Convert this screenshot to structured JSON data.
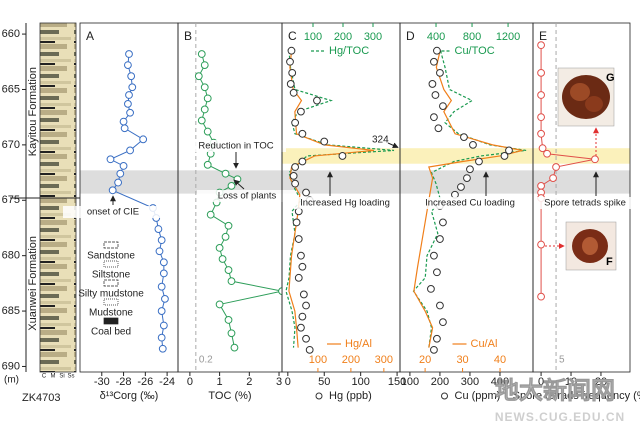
{
  "chart_data": [
    {
      "type": "column",
      "title": "ZK4703",
      "ylabel": "(m)",
      "ylim": [
        659,
        690.5
      ],
      "yticks": [
        660,
        665,
        670,
        675,
        680,
        685,
        690
      ],
      "formations": [
        "Kayitou Formation",
        "Xuanwei Formation"
      ],
      "formation_boundary": 674.8,
      "lithology_columns": [
        "C",
        "M",
        "Si",
        "Ss"
      ],
      "legend": [
        "Sandstone",
        "Siltstone",
        "Silty mudstone",
        "Mudstone",
        "Coal bed"
      ],
      "bands": [
        {
          "from": 670.3,
          "to": 671.7,
          "color": "#fbf0b4"
        },
        {
          "from": 672.3,
          "to": 674.4,
          "color": "#d9d9d9"
        }
      ]
    },
    {
      "type": "profile",
      "label": "A",
      "axes": [
        {
          "label": "δ¹³Corg (‰)",
          "position": "bottom",
          "color": "#222222",
          "xlim": [
            -32,
            -23
          ],
          "xticks": [
            -30,
            -28,
            -26,
            -24
          ]
        }
      ],
      "series": [
        {
          "axis": 0,
          "style": "line-circles",
          "color": "#3a6fc4",
          "depth": [
            661.8,
            662.8,
            663.8,
            664.8,
            665.5,
            666.3,
            667.1,
            667.9,
            668.5,
            669.5,
            670.5,
            671.3,
            671.9,
            672.6,
            673.4,
            674.1,
            675.7,
            676.6,
            677.6,
            678.6,
            679.6,
            680.6,
            681.6,
            682.8,
            683.9,
            685,
            686.3,
            687.4,
            688.4
          ],
          "values": [
            -27.5,
            -27.6,
            -27.3,
            -27.2,
            -27.5,
            -27.6,
            -27.4,
            -28,
            -27.9,
            -26.2,
            -27.4,
            -29.2,
            -28,
            -28.3,
            -28.5,
            -29,
            -25.3,
            -25,
            -24.8,
            -24.5,
            -24.7,
            -24.3,
            -24.3,
            -24.5,
            -24.2,
            -24.5,
            -24.3,
            -24.5,
            -24.4
          ]
        }
      ],
      "annotations": [
        "onset of CIE"
      ]
    },
    {
      "type": "profile",
      "label": "B",
      "ref": 0.2,
      "axes": [
        {
          "label": "TOC (%)",
          "position": "bottom",
          "color": "#222222",
          "xlim": [
            -0.4,
            3.1
          ],
          "xticks": [
            0,
            1,
            2,
            3
          ]
        }
      ],
      "series": [
        {
          "axis": 0,
          "style": "line-circles",
          "color": "#2e9e5a",
          "depth": [
            661.8,
            662.8,
            663.8,
            664.8,
            665.8,
            666.8,
            667.8,
            668.8,
            669.8,
            670.8,
            671.8,
            672.6,
            673.1,
            673.7,
            674.3,
            675.2,
            676.3,
            677.3,
            678.3,
            679.3,
            680.3,
            681.3,
            682.3,
            683.2,
            684.4,
            685.8,
            687,
            688.3
          ],
          "values": [
            0.4,
            0.5,
            0.3,
            0.5,
            0.6,
            0.5,
            0.4,
            0.6,
            0.8,
            0.7,
            0.6,
            1.2,
            1.6,
            1.4,
            1.0,
            0.9,
            0.7,
            1.3,
            1.2,
            1.0,
            1.1,
            1.3,
            1.4,
            3.1,
            1.0,
            1.3,
            1.4,
            1.5
          ]
        }
      ],
      "annotations": [
        "Reduction in TOC",
        "Loss of plants"
      ]
    },
    {
      "type": "profile",
      "label": "C",
      "axes": [
        {
          "label": "Hg (ppb)",
          "position": "bottom",
          "color": "#222222",
          "xlim": [
            -8,
            154
          ],
          "xticks": [
            0,
            50,
            100,
            150
          ]
        },
        {
          "label": "Hg/TOC",
          "position": "top",
          "color": "#1a9a50",
          "xlim": [
            -3.3,
            390
          ],
          "xticks": [
            100,
            200,
            300
          ]
        },
        {
          "label": "Hg/Al",
          "position": "inner-bottom",
          "color": "#f07f1a",
          "xlim": [
            -9,
            349
          ],
          "xticks": [
            100,
            200,
            300
          ]
        }
      ],
      "series": [
        {
          "axis": 1,
          "style": "dashed",
          "color": "#1a9a50",
          "depth": [
            661.5,
            663,
            665,
            666,
            667,
            668,
            669,
            670,
            670.5,
            671,
            671.5,
            672.5,
            673.5,
            675,
            676,
            678,
            680,
            682,
            683.2,
            685,
            686.5,
            688.3
          ],
          "values": [
            20,
            25,
            40,
            160,
            50,
            30,
            40,
            150,
            370,
            80,
            60,
            20,
            30,
            60,
            30,
            40,
            25,
            20,
            10,
            30,
            40,
            35
          ]
        },
        {
          "axis": 2,
          "style": "line",
          "color": "#f07f1a",
          "depth": [
            661.5,
            663,
            665,
            666,
            667,
            669,
            670,
            670.5,
            671,
            672,
            673,
            674.5,
            676,
            678,
            680,
            682,
            683.2,
            685,
            686.5,
            688.3
          ],
          "values": [
            20,
            15,
            25,
            50,
            30,
            35,
            120,
            270,
            90,
            20,
            15,
            45,
            40,
            30,
            20,
            15,
            12,
            30,
            35,
            40
          ]
        },
        {
          "axis": 0,
          "style": "circles",
          "color": "#333333",
          "depth": [
            661.5,
            662.5,
            663.5,
            664.5,
            665.3,
            666,
            667,
            668,
            669,
            669.7,
            670.5,
            671,
            671.5,
            672,
            672.8,
            673.5,
            674.3,
            675,
            676,
            677,
            678.5,
            680,
            681,
            682,
            683.5,
            684.5,
            685.5,
            686.5,
            687.5,
            688.5
          ],
          "values": [
            5,
            3,
            6,
            4,
            8,
            40,
            18,
            10,
            20,
            50,
            324,
            75,
            20,
            10,
            8,
            10,
            25,
            30,
            15,
            12,
            15,
            18,
            20,
            15,
            22,
            25,
            20,
            18,
            25,
            30
          ]
        }
      ],
      "annotations": [
        "Increased Hg loading"
      ]
    },
    {
      "type": "profile",
      "label": "D",
      "axes": [
        {
          "label": "Cu (ppm)",
          "position": "bottom",
          "color": "#222222",
          "xlim": [
            67,
            510
          ],
          "xticks": [
            100,
            200,
            300,
            400
          ]
        },
        {
          "label": "Cu/TOC",
          "position": "top",
          "color": "#1a9a50",
          "xlim": [
            0,
            1477
          ],
          "xticks": [
            400,
            800,
            1200
          ]
        },
        {
          "label": "Cu/Al",
          "position": "inner-bottom",
          "color": "#f07f1a",
          "xlim": [
            13.3,
            48.8
          ],
          "xticks": [
            20,
            30,
            40
          ]
        }
      ],
      "series": [
        {
          "axis": 1,
          "style": "dashed",
          "color": "#1a9a50",
          "depth": [
            661.5,
            663,
            665,
            666,
            667,
            668,
            669,
            670,
            670.5,
            671,
            671.5,
            672.5,
            673.5,
            675,
            676,
            678,
            680,
            682,
            683.2,
            685,
            686.5,
            688.3
          ],
          "values": [
            450,
            500,
            550,
            800,
            600,
            500,
            650,
            1000,
            1400,
            900,
            600,
            350,
            400,
            450,
            350,
            420,
            300,
            280,
            150,
            300,
            350,
            320
          ]
        },
        {
          "axis": 2,
          "style": "line",
          "color": "#f07f1a",
          "depth": [
            661.5,
            663,
            665,
            666,
            667,
            669,
            670,
            670.5,
            671,
            671.5,
            672,
            673,
            675,
            677,
            679,
            681,
            683.2,
            685,
            686.5,
            688.3
          ],
          "values": [
            24,
            23,
            25,
            27,
            25,
            28,
            38,
            46,
            40,
            30,
            21,
            22,
            21,
            20,
            19,
            18,
            17,
            20,
            22,
            21
          ]
        },
        {
          "axis": 0,
          "style": "circles",
          "color": "#333333",
          "depth": [
            661.5,
            662.5,
            663.5,
            664.5,
            665.5,
            666.5,
            667.5,
            668.5,
            669.3,
            670,
            670.5,
            671,
            671.5,
            672.2,
            673,
            673.8,
            674.5,
            675.5,
            677,
            678.5,
            680,
            681.5,
            683,
            684.5,
            686,
            687.5,
            688.5
          ],
          "values": [
            190,
            180,
            200,
            175,
            185,
            210,
            180,
            195,
            280,
            310,
            430,
            415,
            330,
            300,
            290,
            270,
            250,
            200,
            210,
            200,
            180,
            190,
            170,
            200,
            210,
            190,
            180
          ]
        }
      ],
      "annotations": [
        "Increased Cu loading"
      ]
    },
    {
      "type": "profile",
      "label": "E",
      "ref": 5,
      "axes": [
        {
          "label": "Spore tetrads frequency (%)",
          "position": "bottom",
          "color": "#222222",
          "xlim": [
            -2.7,
            29.7
          ],
          "xticks": [
            0,
            10,
            20
          ]
        }
      ],
      "series": [
        {
          "axis": 0,
          "style": "line-circles",
          "color": "#e0504a",
          "depth": [
            661,
            663.5,
            665.5,
            667.5,
            669,
            670.3,
            670.8,
            671.3,
            672,
            673,
            673.7,
            674.3,
            674.8,
            679,
            683.7
          ],
          "values": [
            0,
            0,
            0,
            0,
            0,
            0.5,
            2,
            18,
            5,
            4,
            0,
            0,
            0,
            0,
            0
          ]
        }
      ],
      "annotations": [
        "Spore tetrads spike"
      ],
      "insets": [
        "G",
        "F"
      ]
    }
  ],
  "watermark": {
    "title": "地大新闻网",
    "url": "NEWS.CUG.EDU.CN"
  }
}
